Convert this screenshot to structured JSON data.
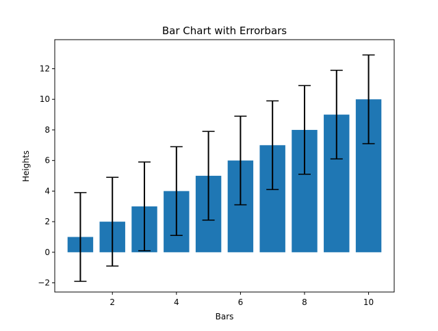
{
  "chart_data": {
    "type": "bar",
    "title": "Bar Chart with Errorbars",
    "xlabel": "Bars",
    "ylabel": "Heights",
    "x": [
      1,
      2,
      3,
      4,
      5,
      6,
      7,
      8,
      9,
      10
    ],
    "values": [
      1,
      2,
      3,
      4,
      5,
      6,
      7,
      8,
      9,
      10
    ],
    "error": [
      2.9,
      2.9,
      2.9,
      2.9,
      2.9,
      2.9,
      2.9,
      2.9,
      2.9,
      2.9
    ],
    "xlim": [
      0.2,
      10.8
    ],
    "ylim": [
      -2.6,
      13.9
    ],
    "xticks": [
      2,
      4,
      6,
      8,
      10
    ],
    "yticks": [
      -2,
      0,
      2,
      4,
      6,
      8,
      10,
      12
    ],
    "ytick_labels": [
      "−2",
      "0",
      "2",
      "4",
      "6",
      "8",
      "10",
      "12"
    ],
    "bar_color": "#1f77b4",
    "errorbar_color": "#000000",
    "grid": false
  }
}
